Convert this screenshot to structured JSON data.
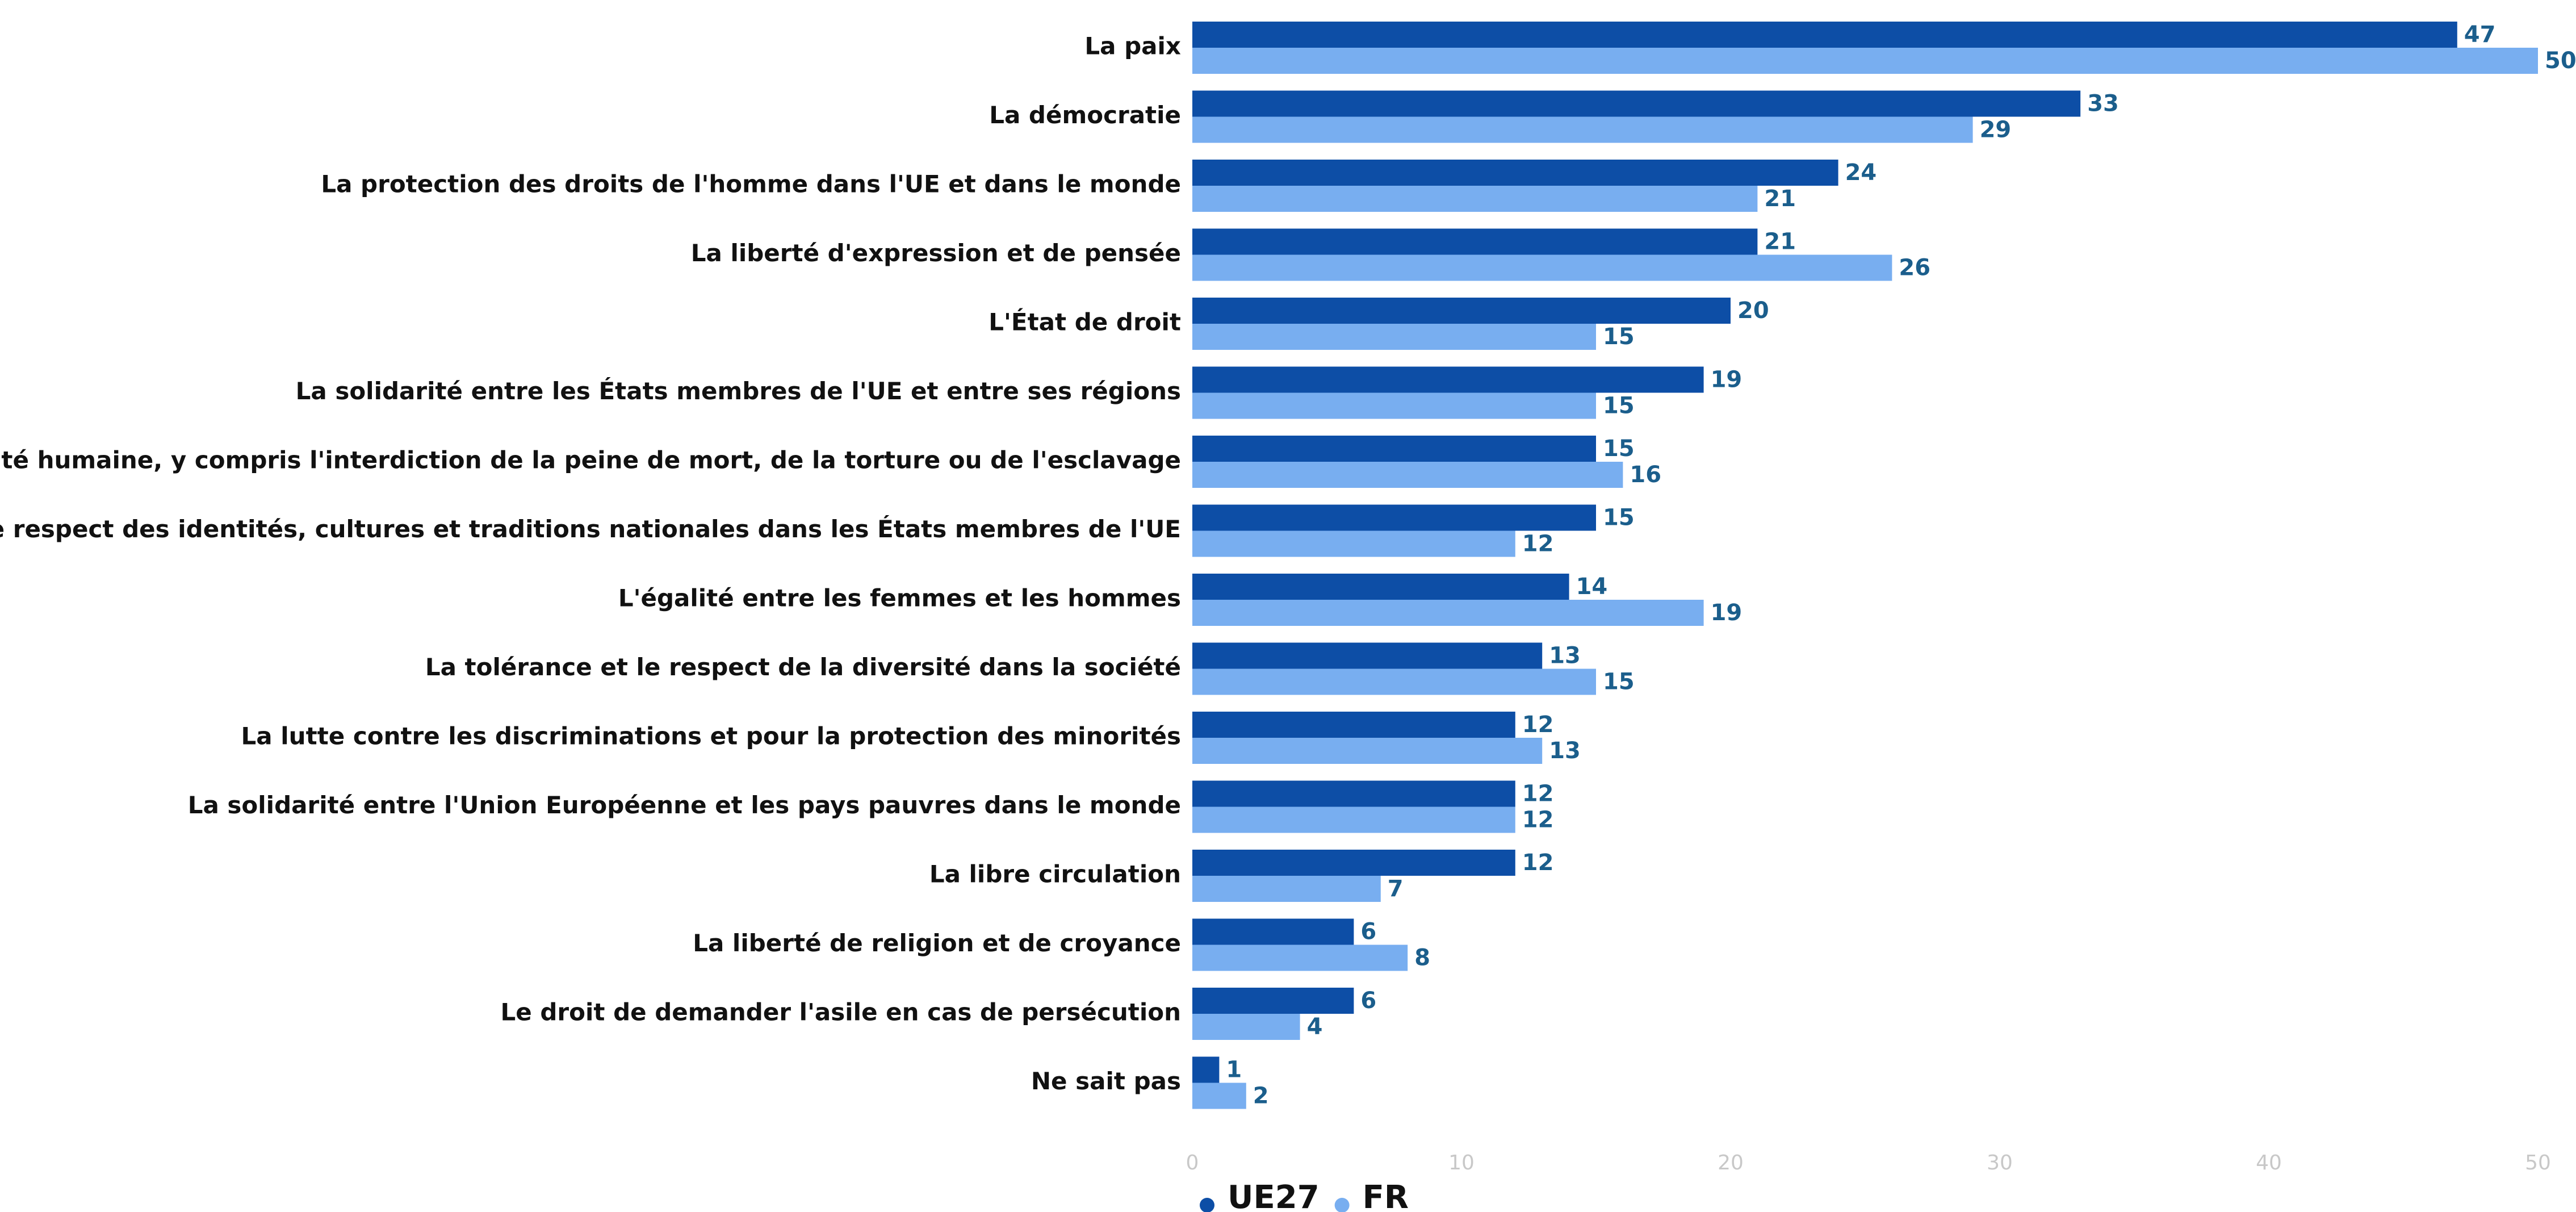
{
  "chart_data": {
    "type": "hbar",
    "categories": [
      "La paix",
      "La démocratie",
      "La protection des droits de l'homme dans l'UE et dans le monde",
      "La liberté d'expression et de pensée",
      "L'État de droit",
      "La solidarité entre les États membres de l'UE et entre ses régions",
      "La dignité humaine, y compris l'interdiction de la peine de mort, de la torture ou de l'esclavage",
      "Le respect des identités, cultures et traditions nationales dans les États membres de l'UE",
      "L'égalité entre les femmes et les hommes",
      "La tolérance et le respect de la diversité dans la société",
      "La lutte contre les discriminations et pour la protection des minorités",
      "La solidarité entre l'Union Européenne et les pays pauvres dans le monde",
      "La libre circulation",
      "La liberté de religion et de croyance",
      "Le droit de demander l'asile en cas de persécution",
      "Ne sait pas"
    ],
    "series": [
      {
        "name": "UE27",
        "color": "#0d4ea6",
        "values": [
          47,
          33,
          24,
          21,
          20,
          19,
          15,
          15,
          14,
          13,
          12,
          12,
          12,
          6,
          6,
          1
        ]
      },
      {
        "name": "FR",
        "color": "#78aef0",
        "values": [
          50,
          29,
          21,
          26,
          15,
          15,
          16,
          12,
          19,
          15,
          13,
          12,
          7,
          8,
          4,
          2
        ]
      }
    ],
    "xlim": [
      0,
      50
    ],
    "xticks": [
      0,
      10,
      20,
      30,
      40,
      50
    ],
    "grid": false,
    "legend": "bottom"
  }
}
